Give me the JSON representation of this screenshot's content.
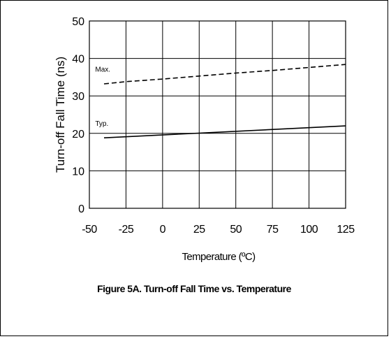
{
  "caption": "Figure 5A. Turn-off Fall Time vs. Temperature",
  "chart_data": {
    "type": "line",
    "title": "",
    "xlabel": "Temperature (ºC)",
    "ylabel": "Turn-off Fall Time (ns)",
    "xlim": [
      -50,
      125
    ],
    "ylim": [
      0,
      50
    ],
    "xticks": [
      -50,
      -25,
      0,
      25,
      50,
      75,
      100,
      125
    ],
    "yticks": [
      0,
      10,
      20,
      30,
      40,
      50
    ],
    "grid": true,
    "series": [
      {
        "name": "Max.",
        "style": "dashed",
        "color": "#000000",
        "x": [
          -40,
          -25,
          0,
          25,
          50,
          75,
          100,
          125
        ],
        "y": [
          33.2,
          33.8,
          34.5,
          35.3,
          36.1,
          36.8,
          37.6,
          38.4
        ]
      },
      {
        "name": "Typ.",
        "style": "solid",
        "color": "#000000",
        "x": [
          -40,
          125
        ],
        "y": [
          18.8,
          22.0
        ]
      }
    ],
    "annotations": [
      {
        "text": "Max.",
        "x": -46,
        "y": 36.5
      },
      {
        "text": "Typ.",
        "x": -46,
        "y": 22.0
      }
    ]
  }
}
